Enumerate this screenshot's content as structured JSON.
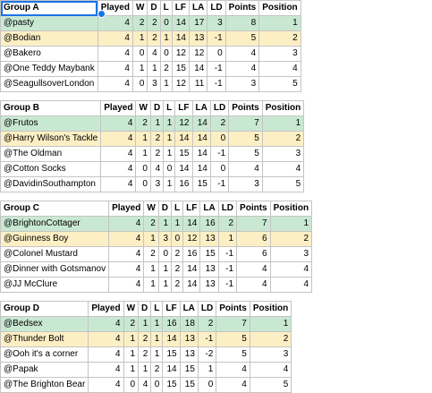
{
  "columns": [
    "Played",
    "W",
    "D",
    "L",
    "LF",
    "LA",
    "LD",
    "Points",
    "Position"
  ],
  "groups": [
    {
      "name": "Group A",
      "rows": [
        [
          "@pasty",
          "4",
          "2",
          "2",
          "0",
          "14",
          "17",
          "3",
          "8",
          "1"
        ],
        [
          "@Bodian",
          "4",
          "1",
          "2",
          "1",
          "14",
          "13",
          "-1",
          "5",
          "2"
        ],
        [
          "@Bakero",
          "4",
          "0",
          "4",
          "0",
          "12",
          "12",
          "0",
          "4",
          "3"
        ],
        [
          "@One Teddy Maybank",
          "4",
          "1",
          "1",
          "2",
          "15",
          "14",
          "-1",
          "4",
          "4"
        ],
        [
          "@SeagullsoverLondon",
          "4",
          "0",
          "3",
          "1",
          "12",
          "11",
          "-1",
          "3",
          "5"
        ]
      ]
    },
    {
      "name": "Group B",
      "rows": [
        [
          "@Frutos",
          "4",
          "2",
          "1",
          "1",
          "12",
          "14",
          "2",
          "7",
          "1"
        ],
        [
          "@Harry Wilson's Tackle",
          "4",
          "1",
          "2",
          "1",
          "14",
          "14",
          "0",
          "5",
          "2"
        ],
        [
          "@The Oldman",
          "4",
          "1",
          "2",
          "1",
          "15",
          "14",
          "-1",
          "5",
          "3"
        ],
        [
          "@Cotton Socks",
          "4",
          "0",
          "4",
          "0",
          "14",
          "14",
          "0",
          "4",
          "4"
        ],
        [
          "@DavidinSouthampton",
          "4",
          "0",
          "3",
          "1",
          "16",
          "15",
          "-1",
          "3",
          "5"
        ]
      ]
    },
    {
      "name": "Group C",
      "rows": [
        [
          "@BrightonCottager",
          "4",
          "2",
          "1",
          "1",
          "14",
          "16",
          "2",
          "7",
          "1"
        ],
        [
          "@Guinness Boy",
          "4",
          "1",
          "3",
          "0",
          "12",
          "13",
          "1",
          "6",
          "2"
        ],
        [
          "@Colonel Mustard",
          "4",
          "2",
          "0",
          "2",
          "16",
          "15",
          "-1",
          "6",
          "3"
        ],
        [
          "@Dinner with Gotsmanov",
          "4",
          "1",
          "1",
          "2",
          "14",
          "13",
          "-1",
          "4",
          "4"
        ],
        [
          "@JJ McClure",
          "4",
          "1",
          "1",
          "2",
          "14",
          "13",
          "-1",
          "4",
          "4"
        ]
      ]
    },
    {
      "name": "Group D",
      "rows": [
        [
          "@Bedsex",
          "4",
          "2",
          "1",
          "1",
          "16",
          "18",
          "2",
          "7",
          "1"
        ],
        [
          "@Thunder Bolt",
          "4",
          "1",
          "2",
          "1",
          "14",
          "13",
          "-1",
          "5",
          "2"
        ],
        [
          "@Ooh it's a corner",
          "4",
          "1",
          "2",
          "1",
          "15",
          "13",
          "-2",
          "5",
          "3"
        ],
        [
          "@Papak",
          "4",
          "1",
          "1",
          "2",
          "14",
          "15",
          "1",
          "4",
          "4"
        ],
        [
          "@The Brighton Bear",
          "4",
          "0",
          "4",
          "0",
          "15",
          "15",
          "0",
          "4",
          "5"
        ]
      ]
    }
  ],
  "colors": {
    "first_row": "#c9e8d2",
    "second_row": "#fdefc4",
    "selection": "#1a73e8"
  }
}
